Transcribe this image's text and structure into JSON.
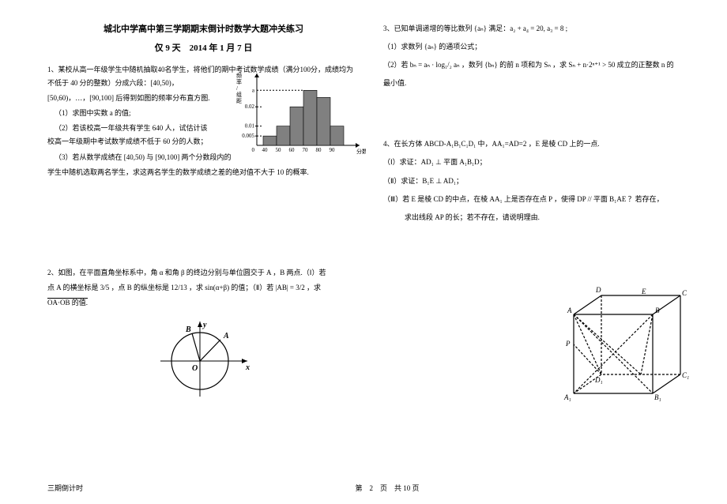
{
  "header": {
    "title1": "城北中学高中第三学期期末倒计时数学大题冲关练习",
    "title2": "仅 9 天　2014 年 1 月 7 日"
  },
  "q1": {
    "intro": "1、某校从高一年级学生中随机抽取40名学生，将他们的期中考试数学成绩（满分100分，成绩均为不低于 40 分的整数）分成六段：[40,50)，",
    "line2": "[50,60)，…，[90,100] 后得到如图的频率分布直方图.",
    "sub1": "（1）求图中实数 a 的值;",
    "sub2": "（2）若该校高一年级共有学生 640 人，试估计该校高一年级期中考试数学成绩不低于 60 分的人数；",
    "sub3": "（3）若从数学成绩在 [40,50) 与 [90,100] 两个分数段内的",
    "sub4": "学生中随机选取两名学生，求这两名学生的数学成绩之差的绝对值不大于 10 的概率."
  },
  "q2": {
    "intro": "2、如图，在平面直角坐标系中，角 α 和角 β 的终边分别与单位圆交于 A ，B 两点.（Ⅰ）若",
    "line2": "点 A 的横坐标是 3/5 ，点 B 的纵坐标是 12/13 ，求 sin(α+β) 的值；（Ⅱ）若 |AB| = 3/2 ，求",
    "line3": "OA·OB 的值."
  },
  "q3": {
    "intro": "3、已知单调递增的等比数列 {aₙ} 满足：a₂ + a₄ = 20, a₃ = 8 ;",
    "sub1": "（1）求数列 {aₙ} 的通项公式；",
    "sub2": "（2）若 bₙ = aₙ · log₁/₂ aₙ ，数列 {bₙ} 的前 n 项和为 Sₙ ，求 Sₙ + n·2ⁿ⁺¹ > 50 成立的正整数 n 的",
    "sub3": "最小值."
  },
  "q4": {
    "intro": "4、在长方体 ABCD-A₁B₁C₁D₁ 中，AA₁=AD=2 ，E 是棱 CD 上的一点.",
    "sub1": "（Ⅰ）求证：AD₁ ⊥ 平面 A₁B₁D；",
    "sub2": "（Ⅱ）求证：B₁E ⊥ AD₁；",
    "sub3": "（Ⅲ）若 E 是棱 CD 的中点，在棱 AA₁ 上是否存在点 P ，使得 DP // 平面 B₁AE ？若存在，",
    "sub4": "求出线段 AP 的长；若不存在，请说明理由."
  },
  "chart": {
    "ylabel": "频率/组距",
    "xlabel": "分数",
    "a_label": "a",
    "xticks": [
      "0",
      "40",
      "50",
      "60",
      "70",
      "80",
      "90"
    ],
    "yticks": [
      "0.005",
      "0.01",
      "0.02"
    ],
    "bar_heights": [
      0.17,
      0.35,
      0.7,
      1.0,
      0.87,
      0.35
    ],
    "bar_color": "#808080",
    "axis_color": "#000000",
    "grid_color": "#000000"
  },
  "circle_chart": {
    "x_label": "x",
    "y_label": "y",
    "o_label": "O",
    "a_label": "A",
    "b_label": "B"
  },
  "cube": {
    "labels": [
      "A",
      "B",
      "C",
      "D",
      "A₁",
      "B₁",
      "C₁",
      "D₁",
      "E",
      "P"
    ]
  },
  "footer": {
    "left": "三期倒计时",
    "center": "第　2　页　共 10 页"
  }
}
